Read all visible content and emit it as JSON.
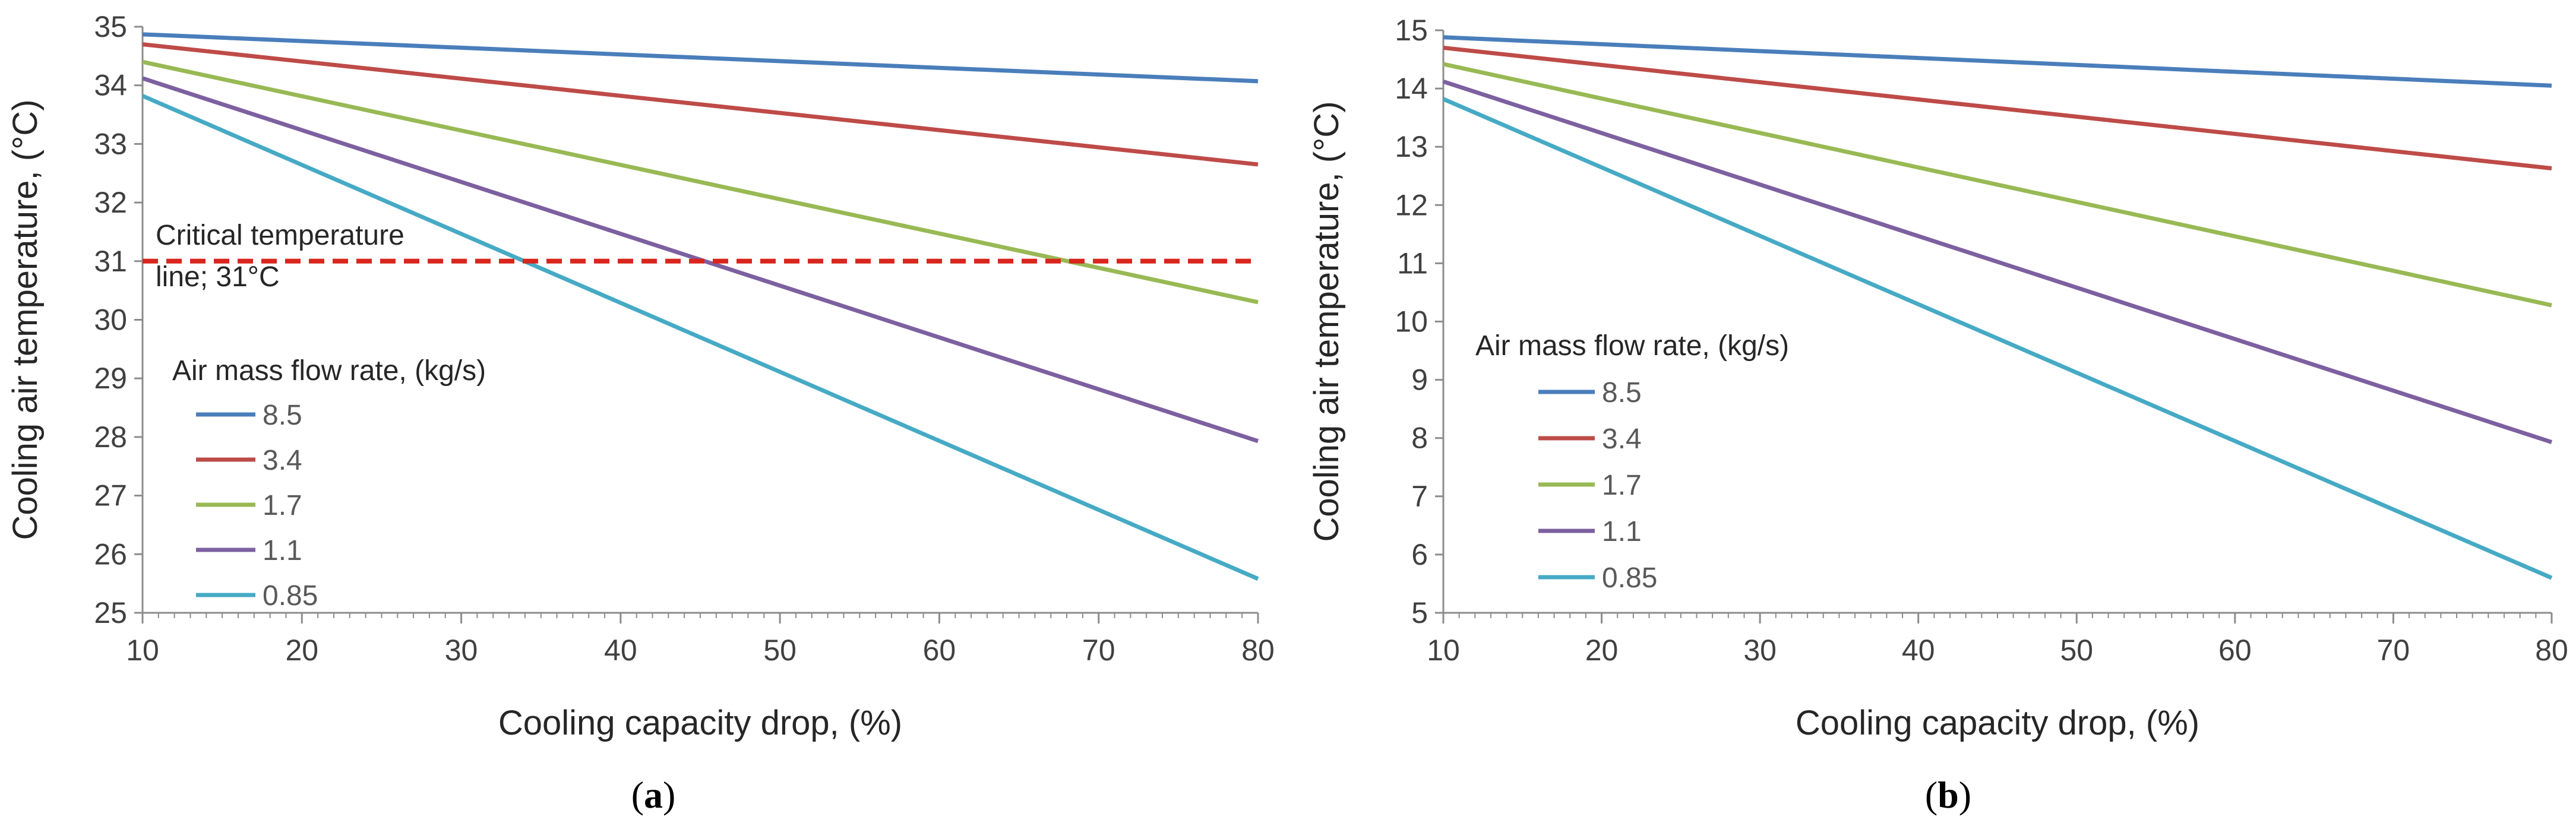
{
  "chart_data": [
    {
      "type": "line",
      "caption_letter": "a",
      "xlabel": "Cooling capacity drop, (%)",
      "ylabel": "Cooling air temperature, (°C)",
      "xlim": [
        10,
        80
      ],
      "ylim": [
        25,
        35
      ],
      "x_ticks": [
        10,
        20,
        30,
        40,
        50,
        60,
        70,
        80
      ],
      "y_ticks": [
        25,
        26,
        27,
        28,
        29,
        30,
        31,
        32,
        33,
        34,
        35
      ],
      "legend_title": "Air mass flow rate, (kg/s)",
      "legend_position": "left",
      "series": [
        {
          "name": "8.5",
          "color": "#4a7ebb",
          "x": [
            10,
            80
          ],
          "y": [
            34.87,
            34.07
          ]
        },
        {
          "name": "3.4",
          "color": "#be4b48",
          "x": [
            10,
            80
          ],
          "y": [
            34.7,
            32.65
          ]
        },
        {
          "name": "1.7",
          "color": "#98b954",
          "x": [
            10,
            80
          ],
          "y": [
            34.4,
            30.3
          ]
        },
        {
          "name": "1.1",
          "color": "#7d60a0",
          "x": [
            10,
            80
          ],
          "y": [
            34.12,
            27.93
          ]
        },
        {
          "name": "0.85",
          "color": "#46aac5",
          "x": [
            10,
            80
          ],
          "y": [
            33.82,
            25.58
          ]
        }
      ],
      "reference_line": {
        "y": 31,
        "color": "#d9251d",
        "style": "dashed"
      },
      "annotation": {
        "line1": "Critical temperature",
        "line2": "line; 31°C"
      }
    },
    {
      "type": "line",
      "caption_letter": "b",
      "xlabel": "Cooling capacity drop, (%)",
      "ylabel": "Cooling air temperature, (°C)",
      "xlim": [
        10,
        80
      ],
      "ylim": [
        5,
        15
      ],
      "x_ticks": [
        10,
        20,
        30,
        40,
        50,
        60,
        70,
        80
      ],
      "y_ticks": [
        5,
        6,
        7,
        8,
        9,
        10,
        11,
        12,
        13,
        14,
        15
      ],
      "legend_title": "Air mass flow rate, (kg/s)",
      "legend_position": "left",
      "series": [
        {
          "name": "8.5",
          "color": "#4a7ebb",
          "x": [
            10,
            80
          ],
          "y": [
            14.88,
            14.05
          ]
        },
        {
          "name": "3.4",
          "color": "#be4b48",
          "x": [
            10,
            80
          ],
          "y": [
            14.7,
            12.63
          ]
        },
        {
          "name": "1.7",
          "color": "#98b954",
          "x": [
            10,
            80
          ],
          "y": [
            14.42,
            10.28
          ]
        },
        {
          "name": "1.1",
          "color": "#7d60a0",
          "x": [
            10,
            80
          ],
          "y": [
            14.12,
            7.93
          ]
        },
        {
          "name": "0.85",
          "color": "#46aac5",
          "x": [
            10,
            80
          ],
          "y": [
            13.82,
            5.6
          ]
        }
      ]
    }
  ]
}
